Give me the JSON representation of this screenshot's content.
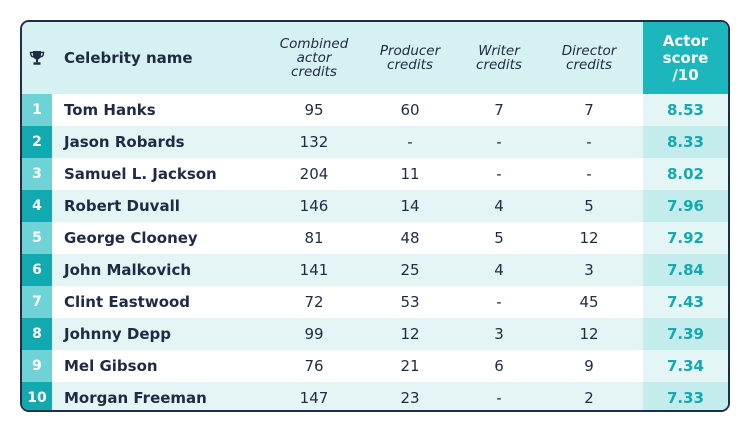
{
  "header": {
    "icon": "trophy-icon",
    "name": "Celebrity name",
    "combined": "Combined\nactor\ncredits",
    "producer": "Producer\ncredits",
    "writer": "Writer\ncredits",
    "director": "Director\ncredits",
    "score": "Actor\nscore\n/10"
  },
  "colors": {
    "accent": "#1bb7bd",
    "dark": "#1f2a44",
    "light_row": "#e4f5f5"
  },
  "rows": [
    {
      "rank": "1",
      "name": "Tom Hanks",
      "combined": "95",
      "producer": "60",
      "writer": "7",
      "director": "7",
      "score": "8.53"
    },
    {
      "rank": "2",
      "name": "Jason Robards",
      "combined": "132",
      "producer": "-",
      "writer": "-",
      "director": "-",
      "score": "8.33"
    },
    {
      "rank": "3",
      "name": "Samuel L. Jackson",
      "combined": "204",
      "producer": "11",
      "writer": "-",
      "director": "-",
      "score": "8.02"
    },
    {
      "rank": "4",
      "name": "Robert Duvall",
      "combined": "146",
      "producer": "14",
      "writer": "4",
      "director": "5",
      "score": "7.96"
    },
    {
      "rank": "5",
      "name": "George Clooney",
      "combined": "81",
      "producer": "48",
      "writer": "5",
      "director": "12",
      "score": "7.92"
    },
    {
      "rank": "6",
      "name": "John Malkovich",
      "combined": "141",
      "producer": "25",
      "writer": "4",
      "director": "3",
      "score": "7.84"
    },
    {
      "rank": "7",
      "name": "Clint Eastwood",
      "combined": "72",
      "producer": "53",
      "writer": "-",
      "director": "45",
      "score": "7.43"
    },
    {
      "rank": "8",
      "name": "Johnny Depp",
      "combined": "99",
      "producer": "12",
      "writer": "3",
      "director": "12",
      "score": "7.39"
    },
    {
      "rank": "9",
      "name": "Mel Gibson",
      "combined": "76",
      "producer": "21",
      "writer": "6",
      "director": "9",
      "score": "7.34"
    },
    {
      "rank": "10",
      "name": "Morgan Freeman",
      "combined": "147",
      "producer": "23",
      "writer": "-",
      "director": "2",
      "score": "7.33"
    }
  ]
}
